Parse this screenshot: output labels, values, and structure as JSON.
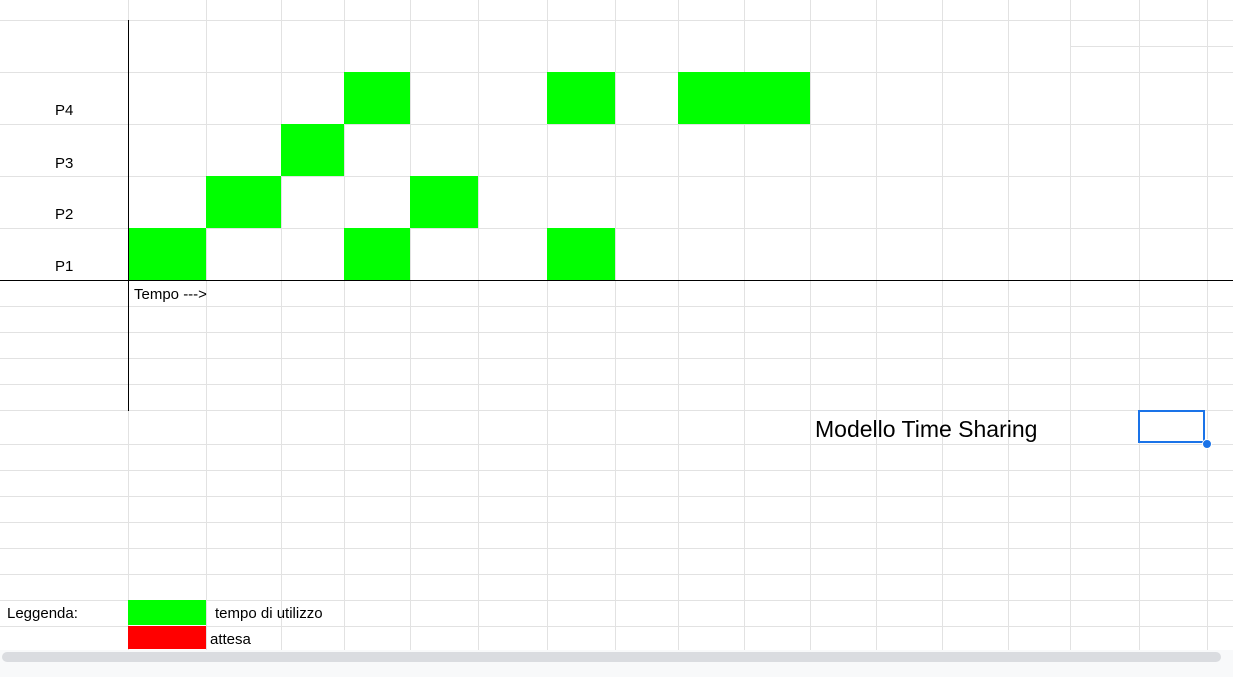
{
  "rows": [
    {
      "label": "P4",
      "blocks": [
        [
          4,
          4
        ],
        [
          7,
          7
        ],
        [
          9,
          10
        ]
      ]
    },
    {
      "label": "P3",
      "blocks": [
        [
          3,
          3
        ]
      ]
    },
    {
      "label": "P2",
      "blocks": [
        [
          2,
          2
        ],
        [
          5,
          5
        ]
      ]
    },
    {
      "label": "P1",
      "blocks": [
        [
          1,
          1
        ],
        [
          4,
          4
        ],
        [
          7,
          7
        ]
      ]
    }
  ],
  "axis": {
    "time_label": "Tempo --->"
  },
  "title": "Modello Time Sharing",
  "legend": {
    "heading": "Leggenda:",
    "items": [
      {
        "color": "#00ff00",
        "label": "tempo di utilizzo"
      },
      {
        "color": "#ff0000",
        "label": "attesa"
      }
    ]
  },
  "colors": {
    "usage": "#00ff00",
    "wait": "#ff0000",
    "selection": "#1a73e8",
    "gridline": "#e2e2e2"
  }
}
